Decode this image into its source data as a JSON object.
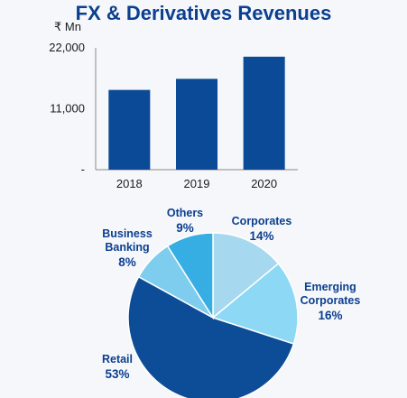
{
  "chart_title": "FX & Derivatives Revenues",
  "colors": {
    "title": "#0b3f8f",
    "bar": "#0a4a97",
    "retail": "#0d4c97",
    "corporates": "#a6d8ef",
    "emerging": "#8dd9f5",
    "business": "#7fcdee",
    "others": "#37aee3"
  },
  "chart_data": [
    {
      "type": "bar",
      "unit_label": "₹ Mn",
      "categories": [
        "2018",
        "2019",
        "2020"
      ],
      "values": [
        14400,
        16400,
        20400
      ],
      "ylim": [
        0,
        22000
      ],
      "y_ticks": [
        "-",
        "11,000",
        "22,000"
      ],
      "y_tick_values": [
        0,
        11000,
        22000
      ],
      "grid": false
    },
    {
      "type": "pie",
      "slices": [
        {
          "label": "Corporates",
          "pct": "14%",
          "value": 14,
          "color_key": "corporates"
        },
        {
          "label": "Emerging Corporates",
          "pct": "16%",
          "value": 16,
          "color_key": "emerging"
        },
        {
          "label": "Retail",
          "pct": "53%",
          "value": 53,
          "color_key": "retail"
        },
        {
          "label": "Business Banking",
          "pct": "8%",
          "value": 8,
          "color_key": "business"
        },
        {
          "label": "Others",
          "pct": "9%",
          "value": 9,
          "color_key": "others"
        }
      ]
    }
  ]
}
